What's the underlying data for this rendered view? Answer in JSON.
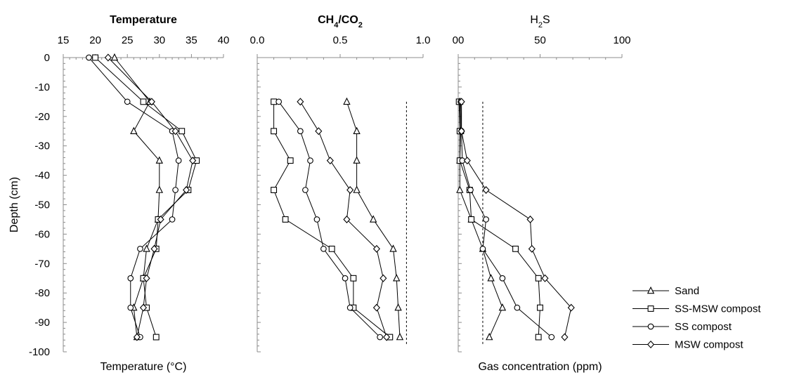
{
  "chart_data": {
    "type": "line",
    "ylabel": "Depth (cm)",
    "ylim": [
      -100,
      0
    ],
    "yticks": [
      0,
      -10,
      -20,
      -30,
      -40,
      -50,
      -60,
      -70,
      -80,
      -90,
      -100
    ],
    "legend": {
      "placement": "bottom-right",
      "entries": [
        {
          "name": "Sand",
          "marker": "triangle"
        },
        {
          "name": "SS-MSW compost",
          "marker": "square"
        },
        {
          "name": "SS compost",
          "marker": "circle"
        },
        {
          "name": "MSW compost",
          "marker": "diamond"
        }
      ]
    },
    "panels": [
      {
        "title": "Temperature",
        "title_bold": true,
        "xlabel": "Temperature (°C)",
        "xlim": [
          15,
          40
        ],
        "xticks": [
          15,
          20,
          25,
          30,
          35,
          40
        ],
        "xtick_labels": [
          "15",
          "20",
          "25",
          "30",
          "35",
          "40"
        ],
        "series": [
          {
            "name": "Sand",
            "marker": "triangle",
            "points": [
              [
                23,
                0
              ],
              [
                28.5,
                -15
              ],
              [
                26,
                -25
              ],
              [
                30,
                -35
              ],
              [
                30,
                -45
              ],
              [
                29.8,
                -55
              ],
              [
                28,
                -65
              ],
              [
                27.5,
                -75
              ],
              [
                26,
                -85
              ],
              [
                26.5,
                -95
              ]
            ]
          },
          {
            "name": "SS-MSW compost",
            "marker": "square",
            "points": [
              [
                20,
                0
              ],
              [
                27.5,
                -15
              ],
              [
                33.5,
                -25
              ],
              [
                35.8,
                -35
              ],
              [
                34.5,
                -45
              ],
              [
                29.8,
                -55
              ],
              [
                29.5,
                -65
              ],
              [
                27.5,
                -75
              ],
              [
                28,
                -85
              ],
              [
                29.5,
                -95
              ]
            ]
          },
          {
            "name": "SS compost",
            "marker": "circle",
            "points": [
              [
                19,
                0
              ],
              [
                25,
                -15
              ],
              [
                32,
                -25
              ],
              [
                33,
                -35
              ],
              [
                32.5,
                -45
              ],
              [
                32,
                -55
              ],
              [
                27,
                -65
              ],
              [
                25.5,
                -75
              ],
              [
                25.5,
                -85
              ],
              [
                27,
                -95
              ]
            ]
          },
          {
            "name": "MSW compost",
            "marker": "diamond",
            "points": [
              [
                22,
                0
              ],
              [
                28.8,
                -15
              ],
              [
                32.5,
                -25
              ],
              [
                35.2,
                -35
              ],
              [
                34.2,
                -45
              ],
              [
                30.2,
                -55
              ],
              [
                29.2,
                -65
              ],
              [
                28,
                -75
              ],
              [
                27.5,
                -85
              ],
              [
                26.5,
                -95
              ]
            ]
          }
        ]
      },
      {
        "title": "CH4/CO2",
        "title_bold": true,
        "xlabel": "",
        "xlim": [
          0,
          1
        ],
        "xticks": [
          0,
          0.5,
          1
        ],
        "xtick_labels": [
          "0.0",
          "0.5",
          "1.0"
        ],
        "reference_line_x": 0.9,
        "series": [
          {
            "name": "Sand",
            "marker": "triangle",
            "points": [
              [
                0.54,
                -15
              ],
              [
                0.6,
                -25
              ],
              [
                0.6,
                -35
              ],
              [
                0.6,
                -45
              ],
              [
                0.7,
                -55
              ],
              [
                0.82,
                -65
              ],
              [
                0.84,
                -75
              ],
              [
                0.85,
                -85
              ],
              [
                0.86,
                -95
              ]
            ]
          },
          {
            "name": "SS-MSW compost",
            "marker": "square",
            "points": [
              [
                0.1,
                -15
              ],
              [
                0.1,
                -25
              ],
              [
                0.2,
                -35
              ],
              [
                0.1,
                -45
              ],
              [
                0.17,
                -55
              ],
              [
                0.45,
                -65
              ],
              [
                0.58,
                -75
              ],
              [
                0.58,
                -85
              ],
              [
                0.8,
                -95
              ]
            ]
          },
          {
            "name": "SS compost",
            "marker": "circle",
            "points": [
              [
                0.13,
                -15
              ],
              [
                0.26,
                -25
              ],
              [
                0.32,
                -35
              ],
              [
                0.29,
                -45
              ],
              [
                0.36,
                -55
              ],
              [
                0.4,
                -65
              ],
              [
                0.53,
                -75
              ],
              [
                0.56,
                -85
              ],
              [
                0.74,
                -95
              ]
            ]
          },
          {
            "name": "MSW compost",
            "marker": "diamond",
            "points": [
              [
                0.26,
                -15
              ],
              [
                0.37,
                -25
              ],
              [
                0.44,
                -35
              ],
              [
                0.56,
                -45
              ],
              [
                0.54,
                -55
              ],
              [
                0.72,
                -65
              ],
              [
                0.76,
                -75
              ],
              [
                0.72,
                -85
              ],
              [
                0.78,
                -95
              ]
            ]
          }
        ]
      },
      {
        "title": "H2S",
        "title_bold": false,
        "xlabel": "Gas concentration (ppm)",
        "xlim": [
          0,
          100
        ],
        "xticks": [
          0,
          50,
          100
        ],
        "xtick_labels": [
          "00",
          "50",
          "100"
        ],
        "reference_line_x": 15,
        "series": [
          {
            "name": "Sand",
            "marker": "triangle",
            "points": [
              [
                1,
                -15
              ],
              [
                1.5,
                -25
              ],
              [
                1,
                -35
              ],
              [
                1,
                -45
              ],
              [
                8,
                -55
              ],
              [
                15,
                -65
              ],
              [
                20,
                -75
              ],
              [
                27,
                -85
              ],
              [
                19,
                -95
              ]
            ]
          },
          {
            "name": "SS-MSW compost",
            "marker": "square",
            "points": [
              [
                0.5,
                -15
              ],
              [
                1,
                -25
              ],
              [
                1,
                -35
              ],
              [
                7,
                -45
              ],
              [
                8,
                -55
              ],
              [
                35,
                -65
              ],
              [
                49,
                -75
              ],
              [
                50,
                -85
              ],
              [
                49,
                -95
              ]
            ]
          },
          {
            "name": "SS compost",
            "marker": "circle",
            "points": [
              [
                1.5,
                -15
              ],
              [
                2,
                -25
              ],
              [
                2.5,
                -35
              ],
              [
                7.5,
                -45
              ],
              [
                17,
                -55
              ],
              [
                15,
                -65
              ],
              [
                27,
                -75
              ],
              [
                36,
                -85
              ],
              [
                57,
                -95
              ]
            ]
          },
          {
            "name": "MSW compost",
            "marker": "diamond",
            "points": [
              [
                2,
                -15
              ],
              [
                2,
                -25
              ],
              [
                5.5,
                -35
              ],
              [
                17,
                -45
              ],
              [
                44,
                -55
              ],
              [
                45,
                -65
              ],
              [
                53,
                -75
              ],
              [
                69,
                -85
              ],
              [
                65,
                -95
              ]
            ]
          }
        ]
      }
    ]
  }
}
